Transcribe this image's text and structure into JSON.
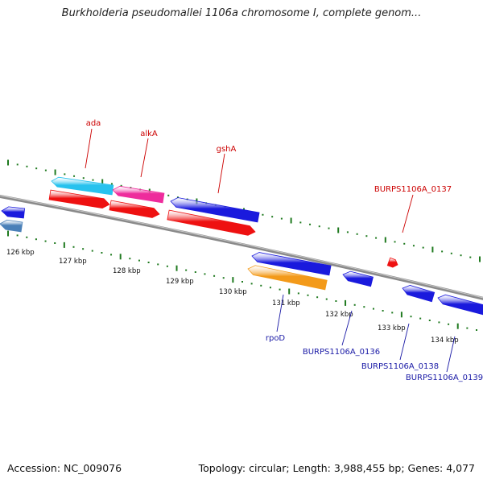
{
  "title": "Burkholderia pseudomallei 1106a chromosome I, complete genom...",
  "footer": {
    "accession": "Accession: NC_009076",
    "summary": "Topology: circular; Length: 3,988,455 bp; Genes: 4,077"
  },
  "colors": {
    "backbone": "#8a8a8a",
    "tick": "#1f7a1f",
    "label_red": "#cc0000",
    "label_blue": "#1a1aa6"
  },
  "ruler": {
    "unit": "kbp",
    "labels": [
      "126 kbp",
      "127 kbp",
      "128 kbp",
      "129 kbp",
      "130 kbp",
      "131 kbp",
      "132 kbp",
      "133 kbp",
      "134 kbp"
    ]
  },
  "genes": [
    {
      "name": "ada",
      "strand": "+",
      "color": "#27c2ee",
      "label_color": "#cc0000"
    },
    {
      "name": "alkA",
      "strand": "+",
      "color": "#ee2c9c",
      "label_color": "#cc0000"
    },
    {
      "name": "gshA",
      "strand": "+",
      "color": "#1a1add",
      "label_color": "#cc0000"
    },
    {
      "name": "BURPS1106A_0137",
      "strand": "+",
      "color": "#ee1111",
      "label_color": "#cc0000"
    },
    {
      "name": "rpoD",
      "strand": "-",
      "color": "#f39a1a",
      "label_color": "#1a1aa6"
    },
    {
      "name": "BURPS1106A_0136",
      "strand": "-",
      "color": "#1a1add",
      "label_color": "#1a1aa6"
    },
    {
      "name": "BURPS1106A_0138",
      "strand": "-",
      "color": "#1a1add",
      "label_color": "#1a1aa6"
    },
    {
      "name": "BURPS1106A_0139",
      "strand": "-",
      "color": "#1a1add",
      "label_color": "#1a1aa6"
    }
  ]
}
